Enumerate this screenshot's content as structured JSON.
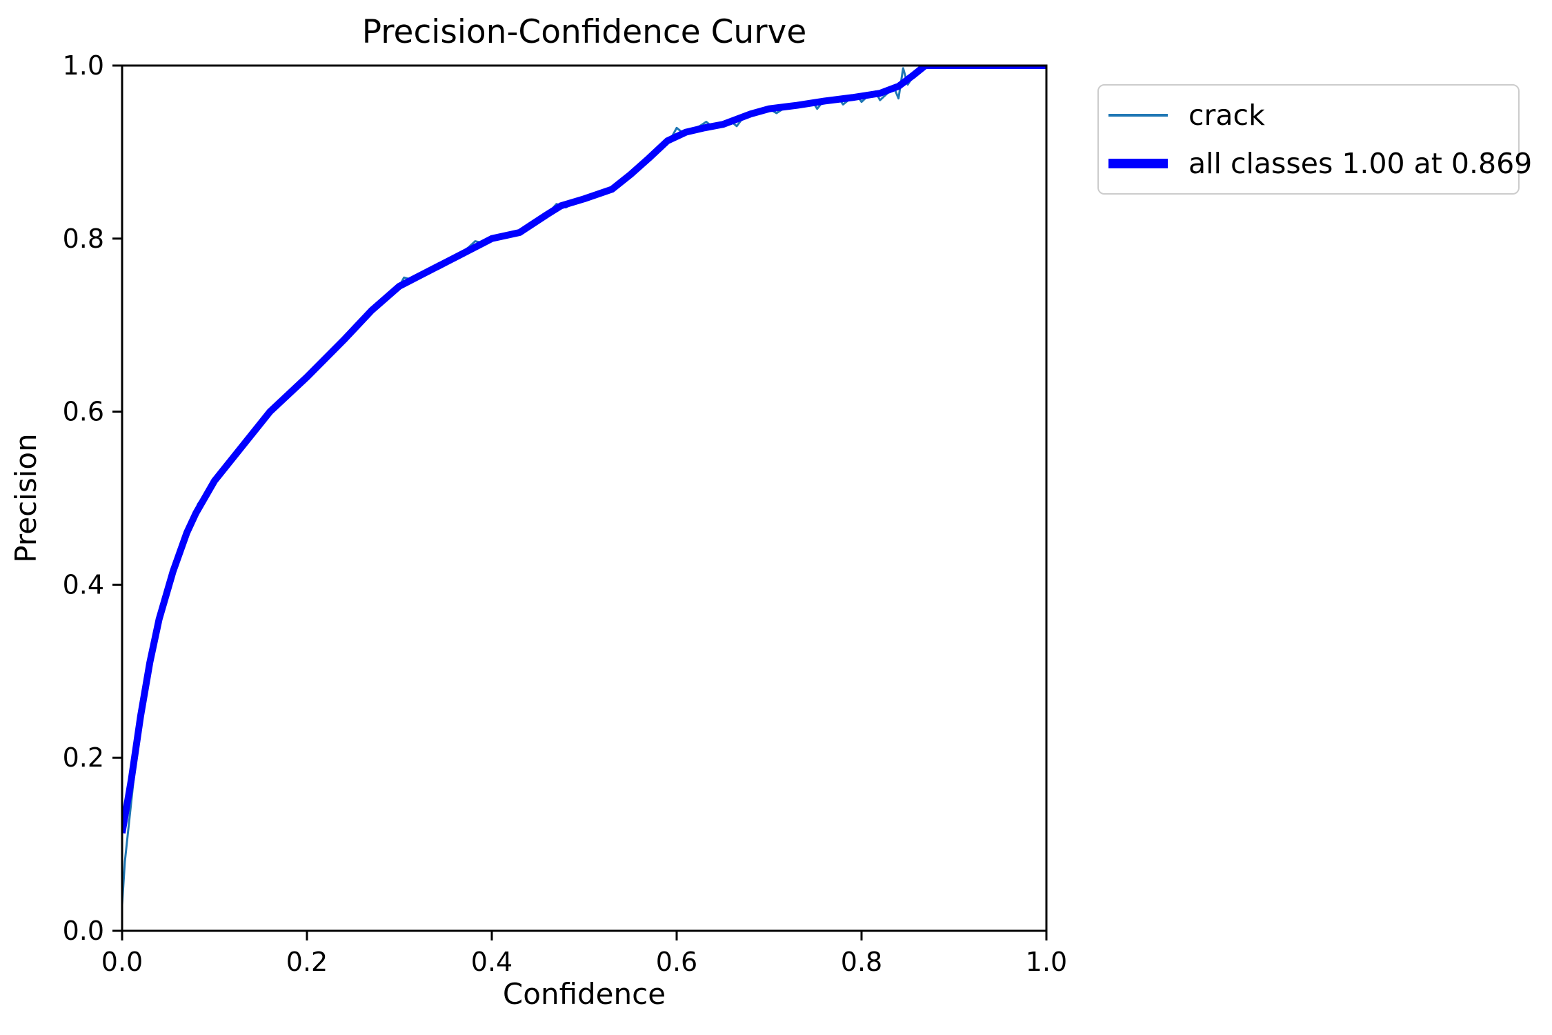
{
  "figure": {
    "kind": "matplotlib-style precision-confidence plot",
    "background": "#ffffff"
  },
  "colors": {
    "class_line": "#1f77b4",
    "all_classes_line": "#0000ff",
    "spine": "#000000",
    "legend_border": "#cccccc"
  },
  "chart_data": {
    "type": "line",
    "title": "Precision-Confidence Curve",
    "xlabel": "Confidence",
    "ylabel": "Precision",
    "xlim": [
      0.0,
      1.0
    ],
    "ylim": [
      0.0,
      1.0
    ],
    "xticks": [
      "0.0",
      "0.2",
      "0.4",
      "0.6",
      "0.8",
      "1.0"
    ],
    "yticks": [
      "0.0",
      "0.2",
      "0.4",
      "0.6",
      "0.8",
      "1.0"
    ],
    "grid": false,
    "legend_position": "outside upper right",
    "annotation": "all classes reach precision 1.00 at confidence 0.869",
    "series": [
      {
        "name": "crack",
        "color": "#1f77b4",
        "line_width": 3,
        "x": [
          0.0,
          0.003,
          0.008,
          0.015,
          0.025,
          0.04,
          0.055,
          0.07,
          0.078,
          0.082,
          0.09,
          0.1,
          0.115,
          0.13,
          0.145,
          0.16,
          0.18,
          0.2,
          0.22,
          0.24,
          0.26,
          0.27,
          0.285,
          0.3,
          0.305,
          0.315,
          0.33,
          0.345,
          0.36,
          0.375,
          0.382,
          0.39,
          0.4,
          0.415,
          0.43,
          0.445,
          0.46,
          0.47,
          0.48,
          0.49,
          0.5,
          0.515,
          0.53,
          0.545,
          0.555,
          0.565,
          0.575,
          0.585,
          0.595,
          0.6,
          0.607,
          0.615,
          0.625,
          0.632,
          0.64,
          0.65,
          0.658,
          0.665,
          0.672,
          0.68,
          0.69,
          0.7,
          0.708,
          0.718,
          0.728,
          0.738,
          0.748,
          0.752,
          0.758,
          0.768,
          0.775,
          0.78,
          0.788,
          0.795,
          0.8,
          0.808,
          0.815,
          0.82,
          0.828,
          0.835,
          0.84,
          0.845,
          0.85,
          0.856,
          0.862,
          0.869,
          1.0
        ],
        "y": [
          0.03,
          0.08,
          0.13,
          0.2,
          0.27,
          0.355,
          0.415,
          0.46,
          0.478,
          0.493,
          0.505,
          0.52,
          0.542,
          0.56,
          0.578,
          0.6,
          0.622,
          0.64,
          0.662,
          0.683,
          0.708,
          0.717,
          0.732,
          0.745,
          0.755,
          0.752,
          0.76,
          0.768,
          0.778,
          0.79,
          0.797,
          0.795,
          0.8,
          0.803,
          0.807,
          0.815,
          0.828,
          0.84,
          0.836,
          0.842,
          0.846,
          0.851,
          0.857,
          0.868,
          0.88,
          0.89,
          0.898,
          0.908,
          0.918,
          0.928,
          0.922,
          0.926,
          0.93,
          0.935,
          0.928,
          0.932,
          0.936,
          0.93,
          0.94,
          0.944,
          0.947,
          0.95,
          0.945,
          0.952,
          0.953,
          0.955,
          0.957,
          0.95,
          0.958,
          0.96,
          0.963,
          0.955,
          0.962,
          0.966,
          0.958,
          0.966,
          0.97,
          0.96,
          0.968,
          0.975,
          0.962,
          0.997,
          0.978,
          0.988,
          0.996,
          1.0,
          1.0
        ]
      },
      {
        "name": "all classes 1.00 at 0.869",
        "color": "#0000ff",
        "line_width": 10,
        "x": [
          0.0,
          0.01,
          0.02,
          0.03,
          0.04,
          0.055,
          0.07,
          0.08,
          0.1,
          0.13,
          0.16,
          0.2,
          0.24,
          0.27,
          0.3,
          0.32,
          0.36,
          0.4,
          0.43,
          0.46,
          0.475,
          0.5,
          0.53,
          0.55,
          0.57,
          0.59,
          0.61,
          0.63,
          0.65,
          0.68,
          0.7,
          0.73,
          0.76,
          0.79,
          0.82,
          0.84,
          0.855,
          0.869,
          0.88,
          1.0
        ],
        "y": [
          0.113,
          0.175,
          0.248,
          0.31,
          0.36,
          0.415,
          0.46,
          0.483,
          0.52,
          0.56,
          0.6,
          0.64,
          0.683,
          0.717,
          0.745,
          0.756,
          0.778,
          0.8,
          0.807,
          0.828,
          0.838,
          0.846,
          0.857,
          0.874,
          0.893,
          0.913,
          0.923,
          0.928,
          0.932,
          0.944,
          0.95,
          0.954,
          0.959,
          0.963,
          0.968,
          0.976,
          0.988,
          1.0,
          1.0,
          1.0
        ]
      }
    ]
  }
}
